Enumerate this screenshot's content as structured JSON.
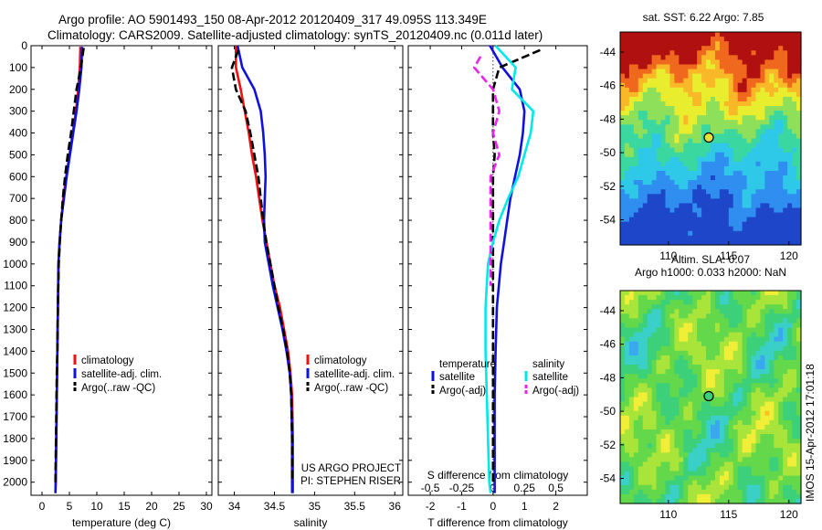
{
  "header": {
    "line1": "Argo profile: AO 5901493_150 08-Apr-2012 20120409_317 49.095S 113.349E",
    "line2": "Climatology: CARS2009. Satellite-adjusted climatology: synTS_20120409.nc (0.011d later)"
  },
  "colors": {
    "climatology": "#ee1111",
    "satellite": "#1111dd",
    "argo": "#000000",
    "cyan": "#00e8e8",
    "magenta": "#ee22ee"
  },
  "chart_data": [
    {
      "type": "line",
      "panel": "temperature",
      "xlabel": "temperature (deg C)",
      "ylabel": "",
      "xlim": [
        -2,
        31
      ],
      "ylim": [
        2060,
        0
      ],
      "xticks": [
        "0",
        "5",
        "10",
        "15",
        "20",
        "25",
        "30"
      ],
      "yticks": [
        "0",
        "100",
        "200",
        "300",
        "400",
        "500",
        "600",
        "700",
        "800",
        "900",
        "1000",
        "1100",
        "1200",
        "1300",
        "1400",
        "1500",
        "1600",
        "1700",
        "1800",
        "1900",
        "2000"
      ],
      "legend": {
        "entries": [
          "climatology",
          "satellite-adj. clim.",
          "Argo(..raw -QC)"
        ],
        "placement": "lower-center"
      },
      "series": [
        {
          "name": "climatology",
          "style": "solid",
          "color": "#ee1111",
          "x": [
            7.0,
            6.9,
            6.6,
            6.2,
            5.6,
            5.0,
            4.4,
            3.9,
            3.5,
            3.2,
            3.0,
            2.9,
            2.8,
            2.75,
            2.7,
            2.65,
            2.6,
            2.55,
            2.5,
            2.45
          ],
          "y": [
            5,
            100,
            200,
            300,
            400,
            500,
            600,
            700,
            800,
            900,
            1000,
            1200,
            1400,
            1500,
            1600,
            1700,
            1800,
            1900,
            2000,
            2050
          ]
        },
        {
          "name": "satellite-adj. clim.",
          "style": "solid",
          "color": "#1111dd",
          "x": [
            7.3,
            7.2,
            6.8,
            6.3,
            5.7,
            5.1,
            4.5,
            4.0,
            3.5,
            3.2,
            3.0,
            2.9,
            2.8,
            2.75,
            2.7,
            2.65,
            2.6,
            2.55,
            2.5,
            2.45
          ],
          "y": [
            5,
            100,
            200,
            300,
            400,
            500,
            600,
            700,
            800,
            900,
            1000,
            1200,
            1400,
            1500,
            1600,
            1700,
            1800,
            1900,
            2000,
            2050
          ]
        },
        {
          "name": "Argo(..raw -QC)",
          "style": "dashed",
          "color": "#000000",
          "x": [
            7.6,
            7.1,
            6.3,
            5.8,
            5.3,
            4.7,
            4.2,
            3.8,
            3.5,
            3.25,
            3.05,
            2.9,
            2.8,
            2.7,
            2.65,
            2.6,
            2.55,
            2.5,
            2.45
          ],
          "y": [
            10,
            100,
            200,
            300,
            400,
            500,
            600,
            700,
            800,
            900,
            1000,
            1200,
            1400,
            1500,
            1600,
            1700,
            1800,
            1900,
            2000
          ]
        }
      ]
    },
    {
      "type": "line",
      "panel": "salinity",
      "xlabel": "salinity",
      "ylabel": "",
      "xlim": [
        33.8,
        36.1
      ],
      "ylim": [
        2060,
        0
      ],
      "xticks": [
        "34",
        "34.5",
        "35",
        "35.5",
        "36"
      ],
      "legend": {
        "entries": [
          "climatology",
          "satellite-adj. clim.",
          "Argo(..raw -QC)"
        ],
        "placement": "lower-center"
      },
      "annotations": [
        "US ARGO PROJECT",
        "PI: STEPHEN RISER"
      ],
      "series": [
        {
          "name": "climatology",
          "style": "solid",
          "color": "#ee1111",
          "x": [
            34.02,
            34.02,
            34.08,
            34.13,
            34.18,
            34.22,
            34.27,
            34.31,
            34.35,
            34.4,
            34.45,
            34.5,
            34.57,
            34.62,
            34.67,
            34.7,
            34.72,
            34.73,
            34.73,
            34.73
          ],
          "y": [
            0,
            100,
            200,
            300,
            400,
            500,
            600,
            700,
            800,
            900,
            1000,
            1100,
            1200,
            1300,
            1400,
            1500,
            1600,
            1800,
            2000,
            2050
          ]
        },
        {
          "name": "satellite-adj. clim.",
          "style": "solid",
          "color": "#1111dd",
          "x": [
            34.04,
            34.1,
            34.25,
            34.33,
            34.36,
            34.38,
            34.39,
            34.38,
            34.37,
            34.38,
            34.43,
            34.48,
            34.54,
            34.6,
            34.65,
            34.69,
            34.71,
            34.72,
            34.72,
            34.72
          ],
          "y": [
            0,
            100,
            200,
            300,
            400,
            500,
            600,
            700,
            800,
            900,
            1000,
            1100,
            1200,
            1300,
            1400,
            1500,
            1600,
            1800,
            2000,
            2050
          ]
        },
        {
          "name": "Argo(..raw -QC)",
          "style": "dashed",
          "color": "#000000",
          "x": [
            34.05,
            33.97,
            34.02,
            34.14,
            34.2,
            34.25,
            34.3,
            34.33,
            34.36,
            34.4,
            34.45,
            34.5,
            34.55,
            34.61,
            34.66,
            34.69,
            34.71,
            34.72,
            34.72
          ],
          "y": [
            20,
            100,
            200,
            300,
            400,
            500,
            600,
            700,
            800,
            900,
            1000,
            1100,
            1200,
            1300,
            1400,
            1500,
            1600,
            1800,
            2000
          ]
        }
      ]
    },
    {
      "type": "line",
      "panel": "difference",
      "xlabel": "T difference from climatology",
      "xlabel_top": "S difference from climatology",
      "ylabel": "",
      "xlim": [
        -2.7,
        3.0
      ],
      "ylim": [
        2060,
        0
      ],
      "xticks": [
        "-2",
        "-1",
        "0",
        "1",
        "2"
      ],
      "xticks_top": [
        "-0.5",
        "-0.25",
        "0",
        "0.25",
        "0.5"
      ],
      "legend": {
        "groups": [
          "temperature",
          "salinity"
        ],
        "entries": [
          "satellite",
          "Argo(-adj)",
          "satellite",
          "Argo(-adj)"
        ],
        "placement": "lower-center"
      },
      "series": [
        {
          "name": "temperature satellite",
          "style": "solid",
          "color": "#1111dd",
          "x": [
            -0.1,
            0.3,
            0.85,
            1.0,
            0.95,
            0.85,
            0.7,
            0.55,
            0.45,
            0.35,
            0.25,
            0.12,
            0.08,
            0.05,
            0.05,
            0.05,
            0.05
          ],
          "y": [
            0,
            100,
            200,
            300,
            400,
            500,
            600,
            700,
            800,
            900,
            1000,
            1200,
            1400,
            1600,
            1800,
            2000,
            2050
          ]
        },
        {
          "name": "temperature Argo(-adj)",
          "style": "dashed",
          "color": "#000000",
          "x": [
            1.5,
            0.2,
            0.0,
            0.0,
            0.0,
            0.05,
            0.0,
            0.0,
            0.0,
            0.0,
            0.0,
            0.0,
            0.0,
            0.0,
            0.0,
            0.0
          ],
          "y": [
            20,
            100,
            200,
            300,
            400,
            500,
            600,
            700,
            800,
            900,
            1000,
            1200,
            1400,
            1600,
            1800,
            2000
          ]
        },
        {
          "name": "salinity satellite",
          "style": "solid",
          "color": "#00e8e8",
          "x": [
            0.02,
            0.18,
            0.15,
            0.32,
            0.3,
            0.25,
            0.2,
            0.12,
            0.05,
            0.0,
            -0.04,
            -0.06,
            -0.06,
            -0.05,
            -0.04,
            -0.03,
            -0.02
          ],
          "y": [
            0,
            100,
            200,
            300,
            400,
            500,
            600,
            700,
            800,
            900,
            1000,
            1200,
            1400,
            1600,
            1800,
            2000,
            2050
          ]
        },
        {
          "name": "salinity Argo(-adj)",
          "style": "dashed",
          "color": "#ee22ee",
          "x": [
            -0.1,
            -0.15,
            0.0,
            0.05,
            0.0,
            0.05,
            -0.02,
            -0.02,
            -0.02,
            -0.02,
            -0.02,
            -0.02
          ],
          "y": [
            50,
            100,
            200,
            300,
            400,
            500,
            600,
            700,
            800,
            900,
            1000,
            1100
          ]
        }
      ]
    },
    {
      "type": "heatmap",
      "panel": "sst-map",
      "title": "sat. SST: 6.22  Argo: 7.85",
      "xlim": [
        106,
        121
      ],
      "ylim": [
        -55.5,
        -42.8
      ],
      "xticks": [
        "110",
        "115",
        "120"
      ],
      "yticks": [
        "-44",
        "-46",
        "-48",
        "-50",
        "-52",
        "-54"
      ],
      "marker": {
        "x": 113.349,
        "y": -49.095
      }
    },
    {
      "type": "heatmap",
      "panel": "sla-map",
      "title": "Altim. SLA: 0.07",
      "subtitle": "Argo h1000: 0.033 h2000: NaN",
      "xlim": [
        106,
        121
      ],
      "ylim": [
        -55.5,
        -42.8
      ],
      "xticks": [
        "110",
        "115",
        "120"
      ],
      "yticks": [
        "-44",
        "-46",
        "-48",
        "-50",
        "-52",
        "-54"
      ],
      "marker": {
        "x": 113.349,
        "y": -49.095
      },
      "side_text": "IMOS 15-Apr-2012 17:01:18"
    }
  ]
}
